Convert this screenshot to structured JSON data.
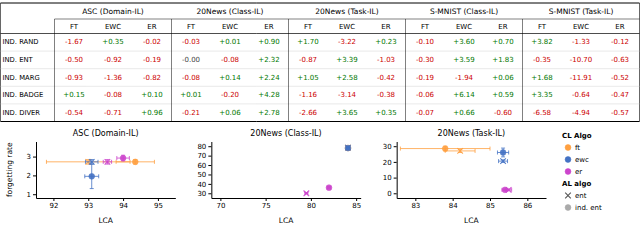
{
  "chart_data": [
    {
      "type": "table",
      "categories": [
        "ASC (Domain-IL)",
        "20News (Class-IL)",
        "20News (Task-IL)",
        "S-MNIST (Class-IL)",
        "S-MNIST (Task-IL)"
      ],
      "sub_categories": [
        "FT",
        "EWC",
        "ER"
      ],
      "series": [
        {
          "name": "IND. RAND",
          "values": [
            [
              -1.67,
              0.35,
              -0.02
            ],
            [
              -0.03,
              0.01,
              0.9
            ],
            [
              1.7,
              -3.22,
              0.23
            ],
            [
              -0.1,
              3.6,
              0.7
            ],
            [
              3.82,
              -1.33,
              -0.12
            ]
          ],
          "value_labels": [
            [
              "-1.67",
              "+0.35",
              "-0.02"
            ],
            [
              "-0.03",
              "+0.01",
              "+0.90"
            ],
            [
              "+1.70",
              "-3.22",
              "+0.23"
            ],
            [
              "-0.10",
              "+3.60",
              "+0.70"
            ],
            [
              "+3.82",
              "-1.33",
              "-0.12"
            ]
          ],
          "colors": [
            [
              "#CC0000",
              "#007700",
              "#CC0000"
            ],
            [
              "#CC0000",
              "#007700",
              "#007700"
            ],
            [
              "#007700",
              "#CC0000",
              "#007700"
            ],
            [
              "#CC0000",
              "#007700",
              "#007700"
            ],
            [
              "#007700",
              "#CC0000",
              "#CC0000"
            ]
          ]
        },
        {
          "name": "IND. ENT",
          "values": [
            [
              -0.5,
              -0.92,
              -0.19
            ],
            [
              -0.0,
              -0.08,
              2.32
            ],
            [
              -0.87,
              3.39,
              -1.03
            ],
            [
              -0.3,
              3.59,
              1.83
            ],
            [
              -0.35,
              -10.7,
              -0.63
            ]
          ],
          "value_labels": [
            [
              "-0.50",
              "-0.92",
              "-0.19"
            ],
            [
              "-0.00",
              "-0.08",
              "+2.32"
            ],
            [
              "-0.87",
              "+3.39",
              "-1.03"
            ],
            [
              "-0.30",
              "+3.59",
              "+1.83"
            ],
            [
              "-0.35",
              "-10.70",
              "-0.63"
            ]
          ],
          "colors": [
            [
              "#CC0000",
              "#CC0000",
              "#CC0000"
            ],
            [
              "#444444",
              "#CC0000",
              "#007700"
            ],
            [
              "#CC0000",
              "#007700",
              "#CC0000"
            ],
            [
              "#CC0000",
              "#007700",
              "#007700"
            ],
            [
              "#CC0000",
              "#CC0000",
              "#CC0000"
            ]
          ]
        },
        {
          "name": "IND. MARG",
          "values": [
            [
              -0.93,
              -1.36,
              -0.82
            ],
            [
              -0.08,
              0.14,
              2.24
            ],
            [
              1.05,
              2.58,
              -0.42
            ],
            [
              -0.19,
              -1.94,
              0.06
            ],
            [
              1.68,
              -11.91,
              -0.52
            ]
          ],
          "value_labels": [
            [
              "-0.93",
              "-1.36",
              "-0.82"
            ],
            [
              "-0.08",
              "+0.14",
              "+2.24"
            ],
            [
              "+1.05",
              "+2.58",
              "-0.42"
            ],
            [
              "-0.19",
              "-1.94",
              "+0.06"
            ],
            [
              "+1.68",
              "-11.91",
              "-0.52"
            ]
          ],
          "colors": [
            [
              "#CC0000",
              "#CC0000",
              "#CC0000"
            ],
            [
              "#CC0000",
              "#007700",
              "#007700"
            ],
            [
              "#007700",
              "#007700",
              "#CC0000"
            ],
            [
              "#CC0000",
              "#CC0000",
              "#007700"
            ],
            [
              "#007700",
              "#CC0000",
              "#CC0000"
            ]
          ]
        },
        {
          "name": "IND. BADGE",
          "values": [
            [
              0.15,
              -0.08,
              0.1
            ],
            [
              0.01,
              -0.2,
              4.28
            ],
            [
              -1.16,
              -3.14,
              -0.38
            ],
            [
              -0.06,
              6.14,
              0.59
            ],
            [
              3.35,
              -0.64,
              -0.47
            ]
          ],
          "value_labels": [
            [
              "+0.15",
              "-0.08",
              "+0.10"
            ],
            [
              "+0.01",
              "-0.20",
              "+4.28"
            ],
            [
              "-1.16",
              "-3.14",
              "-0.38"
            ],
            [
              "-0.06",
              "+6.14",
              "+0.59"
            ],
            [
              "+3.35",
              "-0.64",
              "-0.47"
            ]
          ],
          "colors": [
            [
              "#007700",
              "#CC0000",
              "#007700"
            ],
            [
              "#007700",
              "#CC0000",
              "#007700"
            ],
            [
              "#CC0000",
              "#CC0000",
              "#CC0000"
            ],
            [
              "#CC0000",
              "#007700",
              "#007700"
            ],
            [
              "#007700",
              "#CC0000",
              "#CC0000"
            ]
          ]
        },
        {
          "name": "IND. DIVER",
          "values": [
            [
              -0.54,
              -0.71,
              0.96
            ],
            [
              -0.21,
              0.06,
              2.78
            ],
            [
              -2.66,
              3.65,
              0.35
            ],
            [
              -0.07,
              0.66,
              -0.6
            ],
            [
              -6.58,
              -4.94,
              -0.57
            ]
          ],
          "value_labels": [
            [
              "-0.54",
              "-0.71",
              "+0.96"
            ],
            [
              "-0.21",
              "+0.06",
              "+2.78"
            ],
            [
              "-2.66",
              "+3.65",
              "+0.35"
            ],
            [
              "-0.07",
              "+0.66",
              "-0.60"
            ],
            [
              "-6.58",
              "-4.94",
              "-0.57"
            ]
          ],
          "colors": [
            [
              "#CC0000",
              "#CC0000",
              "#007700"
            ],
            [
              "#CC0000",
              "#007700",
              "#007700"
            ],
            [
              "#CC0000",
              "#007700",
              "#007700"
            ],
            [
              "#CC0000",
              "#007700",
              "#CC0000"
            ],
            [
              "#CC0000",
              "#CC0000",
              "#CC0000"
            ]
          ]
        }
      ]
    },
    {
      "type": "scatter",
      "title": "ASC (Domain-IL)",
      "xlabel": "LCA",
      "ylabel": "forgetting rate",
      "xlim": [
        91.5,
        95.5
      ],
      "ylim": [
        0.8,
        3.8
      ],
      "xticks": [
        92,
        93,
        94,
        95
      ],
      "yticks": [
        1,
        2,
        3
      ],
      "series": [
        {
          "color": "#FFA040",
          "marker": "circle",
          "x": [
            94.35
          ],
          "values": [
            2.72
          ],
          "xerr": [
            0.55
          ],
          "yerr": [
            0.12
          ]
        },
        {
          "color": "#FFA040",
          "marker": "x",
          "x": [
            93.0
          ],
          "values": [
            2.72
          ],
          "xerr": [
            1.2
          ],
          "yerr": [
            0.12
          ]
        },
        {
          "color": "#4472C4",
          "marker": "circle",
          "x": [
            93.1
          ],
          "values": [
            1.95
          ],
          "xerr": [
            0.2
          ],
          "yerr": [
            0.65
          ]
        },
        {
          "color": "#4472C4",
          "marker": "x",
          "x": [
            93.1
          ],
          "values": [
            2.72
          ],
          "xerr": [
            0.18
          ],
          "yerr": [
            0.12
          ]
        },
        {
          "color": "#CC44CC",
          "marker": "circle",
          "x": [
            94.0
          ],
          "values": [
            2.92
          ],
          "xerr": [
            0.18
          ],
          "yerr": [
            0.15
          ]
        },
        {
          "color": "#CC44CC",
          "marker": "x",
          "x": [
            93.55
          ],
          "values": [
            2.72
          ],
          "xerr": [
            0.12
          ],
          "yerr": [
            0.12
          ]
        }
      ]
    },
    {
      "type": "scatter",
      "title": "20News (Class-IL)",
      "xlabel": "LCA",
      "xlim": [
        69,
        85.5
      ],
      "ylim": [
        25,
        85
      ],
      "xticks": [
        70,
        75,
        80,
        85
      ],
      "yticks": [
        30,
        40,
        50,
        60,
        70,
        80
      ],
      "series": [
        {
          "color": "#FFA040",
          "marker": "circle",
          "x": [
            84.1
          ],
          "values": [
            78.0
          ],
          "xerr": [
            0.15
          ],
          "yerr": [
            1.0
          ]
        },
        {
          "color": "#FFA040",
          "marker": "x",
          "x": [
            84.1
          ],
          "values": [
            78.5
          ],
          "xerr": [
            0.12
          ],
          "yerr": [
            0.8
          ]
        },
        {
          "color": "#4472C4",
          "marker": "circle",
          "x": [
            84.1
          ],
          "values": [
            78.0
          ],
          "xerr": [
            0.12
          ],
          "yerr": [
            0.9
          ]
        },
        {
          "color": "#4472C4",
          "marker": "x",
          "x": [
            84.1
          ],
          "values": [
            78.5
          ],
          "xerr": [
            0.12
          ],
          "yerr": [
            0.8
          ]
        },
        {
          "color": "#CC44CC",
          "marker": "x",
          "x": [
            79.5
          ],
          "values": [
            30.0
          ],
          "xerr": [
            0.15
          ],
          "yerr": [
            0.8
          ]
        },
        {
          "color": "#CC44CC",
          "marker": "circle",
          "x": [
            82.0
          ],
          "values": [
            36.0
          ],
          "xerr": [
            0.2
          ],
          "yerr": [
            1.2
          ]
        }
      ]
    },
    {
      "type": "scatter",
      "title": "20News (Task-IL)",
      "xlabel": "LCA",
      "xlim": [
        82.5,
        86.5
      ],
      "ylim": [
        -3,
        33
      ],
      "xticks": [
        83,
        84,
        85,
        86
      ],
      "yticks": [
        0,
        10,
        20,
        30
      ],
      "series": [
        {
          "color": "#FFA040",
          "marker": "circle",
          "x": [
            83.8
          ],
          "values": [
            28.5
          ],
          "xerr": [
            1.2
          ],
          "yerr": [
            1.5
          ]
        },
        {
          "color": "#FFA040",
          "marker": "x",
          "x": [
            84.2
          ],
          "values": [
            27.0
          ],
          "xerr": [
            0.4
          ],
          "yerr": [
            1.0
          ]
        },
        {
          "color": "#4472C4",
          "marker": "circle",
          "x": [
            85.35
          ],
          "values": [
            26.0
          ],
          "xerr": [
            0.15
          ],
          "yerr": [
            2.8
          ]
        },
        {
          "color": "#4472C4",
          "marker": "x",
          "x": [
            85.35
          ],
          "values": [
            20.5
          ],
          "xerr": [
            0.12
          ],
          "yerr": [
            0.8
          ]
        },
        {
          "color": "#CC44CC",
          "marker": "circle",
          "x": [
            85.4
          ],
          "values": [
            2.2
          ],
          "xerr": [
            0.08
          ],
          "yerr": [
            0.5
          ]
        },
        {
          "color": "#CC44CC",
          "marker": "x",
          "x": [
            85.5
          ],
          "values": [
            2.2
          ],
          "xerr": [
            0.08
          ],
          "yerr": [
            0.5
          ]
        }
      ]
    },
    {
      "type": "legend",
      "groups": [
        {
          "title": "CL Algo",
          "series": [
            {
              "name": "ft",
              "color": "#FFA040",
              "marker": "circle"
            },
            {
              "name": "ewc",
              "color": "#4472C4",
              "marker": "circle"
            },
            {
              "name": "er",
              "color": "#CC44CC",
              "marker": "circle"
            }
          ]
        },
        {
          "title": "AL algo",
          "series": [
            {
              "name": "ent",
              "color": "#555555",
              "marker": "x"
            },
            {
              "name": "ind. ent",
              "color": "#AAAAAA",
              "marker": "circle"
            }
          ]
        }
      ]
    }
  ]
}
